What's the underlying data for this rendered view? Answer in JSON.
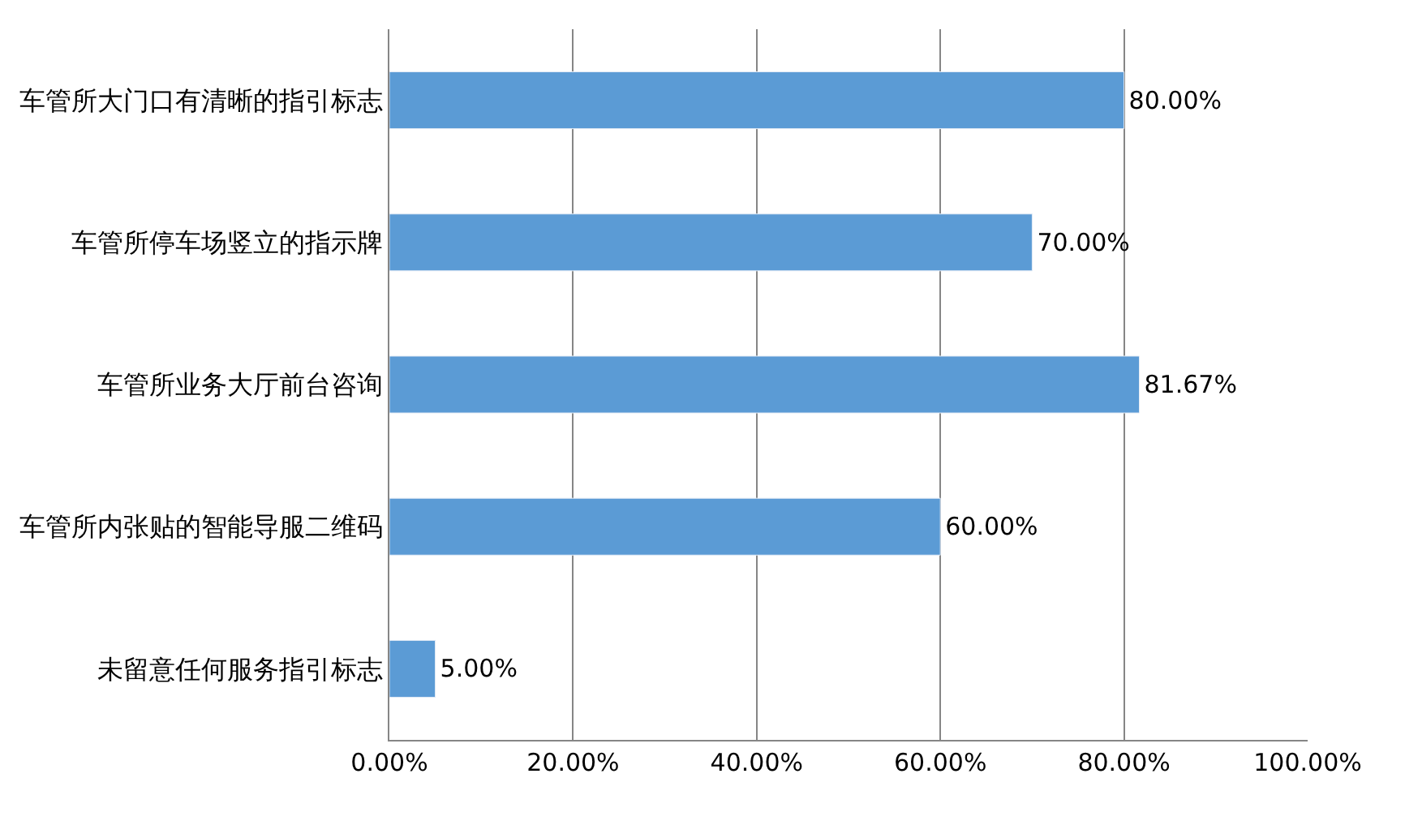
{
  "chart_data": {
    "type": "bar",
    "orientation": "horizontal",
    "categories": [
      "车管所大门口有清晰的指引标志",
      "车管所停车场竖立的指示牌",
      "车管所业务大厅前台咨询",
      "车管所内张贴的智能导服二维码",
      "未留意任何服务指引标志"
    ],
    "values": [
      80,
      70,
      81.67,
      60,
      5
    ],
    "value_labels": [
      "80.00%",
      "70.00%",
      "81.67%",
      "60.00%",
      "5.00%"
    ],
    "color": "#5b9bd5",
    "xlim": [
      0,
      100
    ],
    "xticks": [
      {
        "value": 0,
        "label": "0.00%"
      },
      {
        "value": 20,
        "label": "20.00%"
      },
      {
        "value": 40,
        "label": "40.00%"
      },
      {
        "value": 60,
        "label": "60.00%"
      },
      {
        "value": 80,
        "label": "80.00%"
      },
      {
        "value": 100,
        "label": "100.00%"
      }
    ],
    "grid": "x",
    "legend": false
  }
}
